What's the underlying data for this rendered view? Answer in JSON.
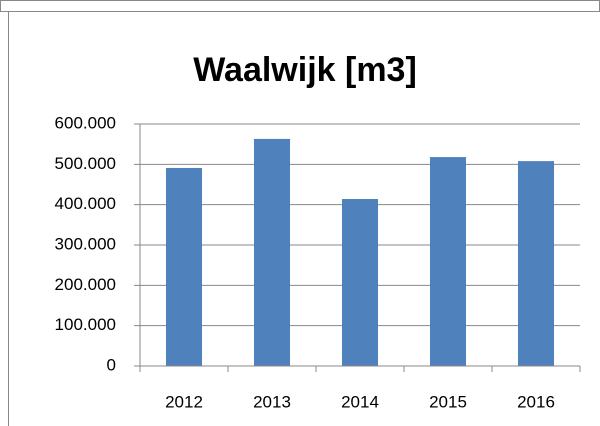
{
  "chart_data": {
    "type": "bar",
    "title": "Waalwijk [m3]",
    "categories": [
      "2012",
      "2013",
      "2014",
      "2015",
      "2016"
    ],
    "values": [
      491000,
      563000,
      414000,
      518000,
      508000
    ],
    "color": "#4f81bd",
    "ylim": [
      0,
      600000
    ],
    "yticks": [
      0,
      {
        "value": 100000,
        "label": "100.000"
      },
      {
        "value": 200000,
        "label": "200.000"
      },
      {
        "value": 300000,
        "label": "300.000"
      },
      {
        "value": 400000,
        "label": "400.000"
      },
      {
        "value": 500000,
        "label": "500.000"
      },
      {
        "value": 600000,
        "label": "600.000"
      }
    ],
    "grid": true
  }
}
